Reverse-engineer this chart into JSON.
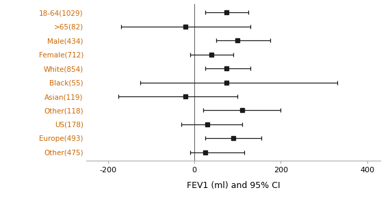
{
  "subgroups": [
    "18-64(1029)",
    ">65(82)",
    "Male(434)",
    "Female(712)",
    "White(854)",
    "Black(55)",
    "Asian(119)",
    "Other(118)",
    "US(178)",
    "Europe(493)",
    "Other(475)"
  ],
  "centers": [
    75,
    -20,
    100,
    40,
    75,
    75,
    -20,
    110,
    30,
    90,
    25
  ],
  "ci_low": [
    25,
    -170,
    50,
    -10,
    25,
    -125,
    -175,
    20,
    -30,
    25,
    -10
  ],
  "ci_high": [
    125,
    130,
    175,
    90,
    130,
    330,
    100,
    200,
    110,
    155,
    115
  ],
  "label_color": "#cc6600",
  "point_color": "#1a1a1a",
  "line_color": "#1a1a1a",
  "xlabel": "FEV1 (ml) and 95% CI",
  "xlim": [
    -250,
    430
  ],
  "xticks": [
    -200,
    0,
    200,
    400
  ],
  "vline_x": 0,
  "vline_color": "#666666",
  "label_fontsize": 7.5,
  "tick_fontsize": 8,
  "xlabel_fontsize": 9
}
